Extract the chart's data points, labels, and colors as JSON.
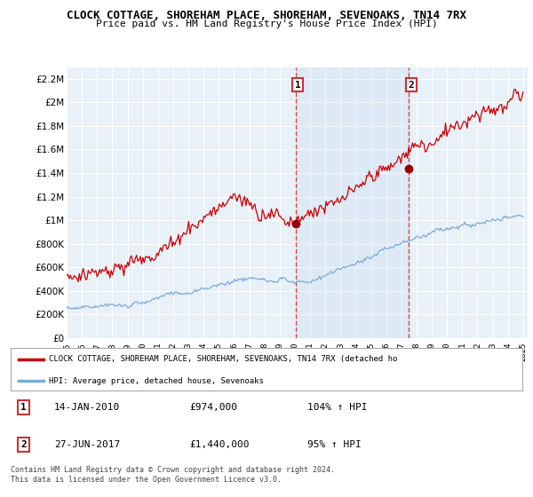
{
  "title1": "CLOCK COTTAGE, SHOREHAM PLACE, SHOREHAM, SEVENOAKS, TN14 7RX",
  "title2": "Price paid vs. HM Land Registry's House Price Index (HPI)",
  "ylim": [
    0,
    2300000
  ],
  "yticks": [
    0,
    200000,
    400000,
    600000,
    800000,
    1000000,
    1200000,
    1400000,
    1600000,
    1800000,
    2000000,
    2200000
  ],
  "ytick_labels": [
    "£0",
    "£200K",
    "£400K",
    "£600K",
    "£800K",
    "£1M",
    "£1.2M",
    "£1.4M",
    "£1.6M",
    "£1.8M",
    "£2M",
    "£2.2M"
  ],
  "xtick_years": [
    1995,
    1996,
    1997,
    1998,
    1999,
    2000,
    2001,
    2002,
    2003,
    2004,
    2005,
    2006,
    2007,
    2008,
    2009,
    2010,
    2011,
    2012,
    2013,
    2014,
    2015,
    2016,
    2017,
    2018,
    2019,
    2020,
    2021,
    2022,
    2023,
    2024,
    2025
  ],
  "purchase1_x": 2010.04,
  "purchase1_y": 974000,
  "purchase2_x": 2017.49,
  "purchase2_y": 1440000,
  "vline1_x": 2010.04,
  "vline2_x": 2017.49,
  "line_color_red": "#cc0000",
  "line_color_blue": "#7aabdb",
  "dot_color": "#990000",
  "vline_color": "#dd4444",
  "bg_color": "#ffffff",
  "grid_color": "#cccccc",
  "legend_label_red": "CLOCK COTTAGE, SHOREHAM PLACE, SHOREHAM, SEVENOAKS, TN14 7RX (detached ho",
  "legend_label_blue": "HPI: Average price, detached house, Sevenoaks",
  "table_row1": [
    "1",
    "14-JAN-2010",
    "£974,000",
    "104% ↑ HPI"
  ],
  "table_row2": [
    "2",
    "27-JUN-2017",
    "£1,440,000",
    "95% ↑ HPI"
  ],
  "footer": "Contains HM Land Registry data © Crown copyright and database right 2024.\nThis data is licensed under the Open Government Licence v3.0."
}
